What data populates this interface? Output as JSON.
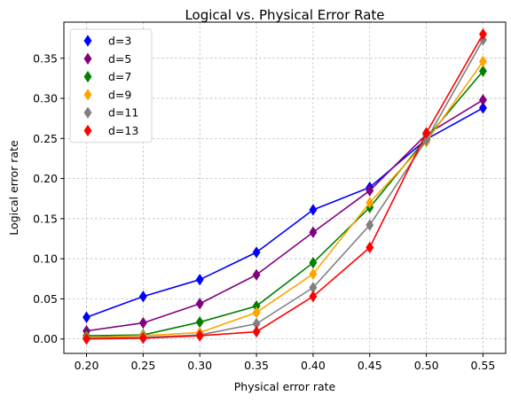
{
  "chart_data": {
    "type": "line",
    "title": "Logical vs. Physical Error Rate",
    "xlabel": "Physical error rate",
    "ylabel": "Logical error rate",
    "x": [
      0.2,
      0.25,
      0.3,
      0.35,
      0.4,
      0.45,
      0.5,
      0.55
    ],
    "xlim": [
      0.18,
      0.57
    ],
    "ylim": [
      -0.018,
      0.395
    ],
    "xticks": [
      0.2,
      0.25,
      0.3,
      0.35,
      0.4,
      0.45,
      0.5,
      0.55
    ],
    "xtick_labels": [
      "0.20",
      "0.25",
      "0.30",
      "0.35",
      "0.40",
      "0.45",
      "0.50",
      "0.55"
    ],
    "yticks": [
      0.0,
      0.05,
      0.1,
      0.15,
      0.2,
      0.25,
      0.3,
      0.35
    ],
    "ytick_labels": [
      "0.00",
      "0.05",
      "0.10",
      "0.15",
      "0.20",
      "0.25",
      "0.30",
      "0.35"
    ],
    "grid": true,
    "legend_position": "upper-left",
    "marker": "thin-diamond",
    "series": [
      {
        "name": "d=3",
        "color": "#0000ff",
        "values": [
          0.027,
          0.053,
          0.074,
          0.108,
          0.161,
          0.189,
          0.249,
          0.288
        ]
      },
      {
        "name": "d=5",
        "color": "#800080",
        "values": [
          0.01,
          0.02,
          0.044,
          0.08,
          0.133,
          0.185,
          0.255,
          0.298
        ]
      },
      {
        "name": "d=7",
        "color": "#008000",
        "values": [
          0.004,
          0.005,
          0.021,
          0.041,
          0.095,
          0.164,
          0.25,
          0.334
        ]
      },
      {
        "name": "d=9",
        "color": "#ffa500",
        "values": [
          0.002,
          0.004,
          0.008,
          0.033,
          0.081,
          0.17,
          0.246,
          0.346
        ]
      },
      {
        "name": "d=11",
        "color": "#808080",
        "values": [
          0.001,
          0.002,
          0.005,
          0.019,
          0.064,
          0.142,
          0.248,
          0.373
        ]
      },
      {
        "name": "d=13",
        "color": "#ff0000",
        "values": [
          0.0,
          0.001,
          0.004,
          0.009,
          0.053,
          0.114,
          0.257,
          0.38
        ]
      }
    ]
  }
}
